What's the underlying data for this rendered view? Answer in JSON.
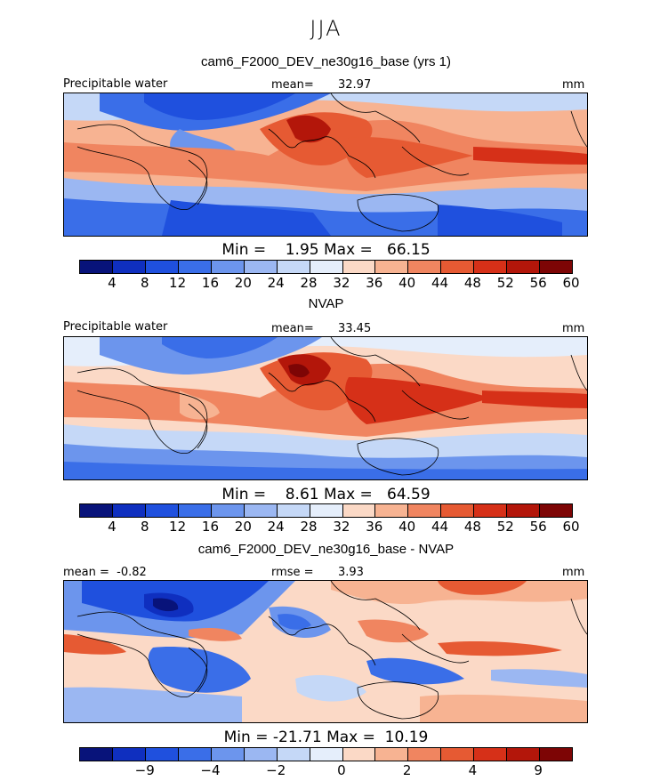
{
  "season": "JJA",
  "panels": [
    {
      "title": "cam6_F2000_DEV_ne30g16_base (yrs 1)",
      "left_label": "Precipitable water",
      "stat_label": "mean=",
      "stat_value": "32.97",
      "units": "mm",
      "minmax": "Min =    1.95 Max =   66.15",
      "ticks": [
        "4",
        "8",
        "12",
        "16",
        "20",
        "24",
        "28",
        "32",
        "36",
        "40",
        "44",
        "48",
        "52",
        "56",
        "60"
      ],
      "map_kind": "abs"
    },
    {
      "title": "NVAP",
      "left_label": "Precipitable water",
      "stat_label": "mean=",
      "stat_value": "33.45",
      "units": "mm",
      "minmax": "Min =    8.61 Max =   64.59",
      "ticks": [
        "4",
        "8",
        "12",
        "16",
        "20",
        "24",
        "28",
        "32",
        "36",
        "40",
        "44",
        "48",
        "52",
        "56",
        "60"
      ],
      "map_kind": "abs"
    },
    {
      "title": "cam6_F2000_DEV_ne30g16_base - NVAP",
      "left_label": "mean =  -0.82",
      "stat_label": "rmse =",
      "stat_value": "3.93",
      "units": "mm",
      "minmax": "Min = -21.71 Max =  10.19",
      "ticks": [
        "-9",
        "-4",
        "-2",
        "0",
        "2",
        "4",
        "9"
      ],
      "map_kind": "diff"
    }
  ],
  "colorbar_colors": [
    "#08137a",
    "#0f2fbf",
    "#1f50de",
    "#3a6ee8",
    "#6c95ed",
    "#9bb7f2",
    "#c5d8f7",
    "#e5eefb",
    "#fbd9c6",
    "#f7b392",
    "#f08560",
    "#e65a33",
    "#d63018",
    "#b3160a",
    "#7d0505"
  ],
  "diff_colorbar_colors": [
    "#08137a",
    "#0f2fbf",
    "#1f50de",
    "#3a6ee8",
    "#6c95ed",
    "#9bb7f2",
    "#c5d8f7",
    "#e5eefb",
    "#fbd9c6",
    "#f7b392",
    "#f08560",
    "#e65a33",
    "#d63018",
    "#b3160a",
    "#7d0505"
  ]
}
